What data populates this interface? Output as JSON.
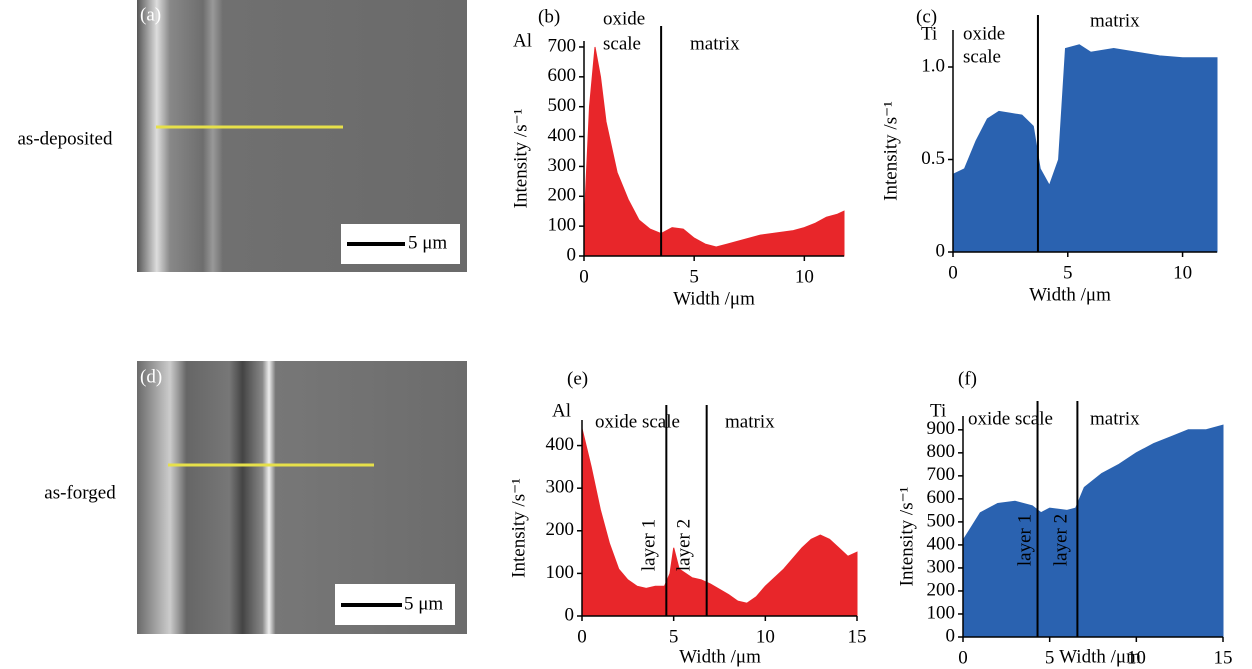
{
  "panels": [
    {
      "label": "(a)",
      "row_label": "as-deposited",
      "scale_bar": "5 μm"
    },
    {
      "label": "(d)",
      "row_label": "as-forged",
      "scale_bar": "5 μm"
    }
  ],
  "chart_data": [
    {
      "type": "area",
      "panel": "(b)",
      "element": "Al",
      "xlabel": "Width /μm",
      "ylabel": "Intensity /s⁻¹",
      "color": "#e8262a",
      "annotations": [
        "oxide",
        "scale",
        "matrix"
      ],
      "vlines": [
        3.5
      ],
      "x": [
        0,
        0.25,
        0.5,
        0.75,
        1,
        1.5,
        2,
        2.5,
        3,
        3.5,
        4,
        4.5,
        5,
        5.5,
        6,
        6.5,
        7,
        7.5,
        8,
        8.5,
        9,
        9.5,
        10,
        10.5,
        11,
        11.5,
        11.8
      ],
      "values": [
        100,
        500,
        700,
        600,
        450,
        280,
        190,
        120,
        90,
        75,
        95,
        90,
        60,
        40,
        30,
        40,
        50,
        60,
        70,
        75,
        80,
        85,
        95,
        110,
        130,
        140,
        150
      ],
      "xlim": [
        0,
        11.8
      ],
      "ylim": [
        0,
        720
      ],
      "xticks": [
        0,
        5,
        10
      ],
      "yticks": [
        0,
        100,
        200,
        300,
        400,
        500,
        600,
        700
      ]
    },
    {
      "type": "area",
      "panel": "(c)",
      "element": "Ti",
      "xlabel": "Width /μm",
      "ylabel": "Intensity /s⁻¹",
      "color": "#2a62b0",
      "annotations": [
        "oxide",
        "scale",
        "matrix"
      ],
      "vlines": [
        3.7
      ],
      "x": [
        0,
        0.5,
        1,
        1.5,
        2,
        2.5,
        3,
        3.5,
        3.8,
        4.2,
        4.6,
        4.9,
        5.5,
        6,
        7,
        8,
        9,
        10,
        11,
        11.5
      ],
      "values": [
        0.42,
        0.45,
        0.6,
        0.72,
        0.76,
        0.75,
        0.74,
        0.68,
        0.45,
        0.36,
        0.5,
        1.1,
        1.12,
        1.08,
        1.1,
        1.08,
        1.06,
        1.05,
        1.05,
        1.05
      ],
      "xlim": [
        0,
        11.5
      ],
      "ylim": [
        0,
        1.2
      ],
      "xticks": [
        0,
        5,
        10
      ],
      "yticks": [
        0,
        0.5,
        {
          "value": 1,
          "label": "1.0"
        }
      ]
    },
    {
      "type": "area",
      "panel": "(e)",
      "element": "Al",
      "xlabel": "Width /μm",
      "ylabel": "Intensity /s⁻¹",
      "color": "#e8262a",
      "annotations": [
        "oxide scale",
        "matrix",
        "layer 1",
        "layer 2"
      ],
      "vlines": [
        4.6,
        6.8
      ],
      "x": [
        0,
        0.5,
        1,
        1.5,
        2,
        2.5,
        3,
        3.5,
        4,
        4.5,
        4.8,
        5,
        5.3,
        6,
        6.5,
        7,
        8,
        8.5,
        9,
        9.5,
        10,
        11,
        12,
        12.5,
        13,
        13.5,
        14,
        14.5,
        15
      ],
      "values": [
        440,
        350,
        250,
        170,
        110,
        85,
        70,
        65,
        70,
        70,
        100,
        160,
        110,
        90,
        85,
        75,
        50,
        35,
        30,
        45,
        70,
        110,
        160,
        180,
        190,
        180,
        160,
        140,
        150
      ],
      "xlim": [
        0,
        15
      ],
      "ylim": [
        0,
        460
      ],
      "xticks": [
        0,
        5,
        10,
        15
      ],
      "yticks": [
        0,
        100,
        200,
        300,
        400
      ]
    },
    {
      "type": "area",
      "panel": "(f)",
      "element": "Ti",
      "xlabel": "Width /μm",
      "ylabel": "Intensity /s⁻¹",
      "color": "#2a62b0",
      "annotations": [
        "oxide scale",
        "matrix",
        "layer 1",
        "layer 2"
      ],
      "vlines": [
        4.3,
        6.6
      ],
      "x": [
        0,
        0.5,
        1,
        2,
        3,
        4,
        4.5,
        5,
        6,
        6.5,
        7,
        8,
        9,
        10,
        11,
        12,
        13,
        14,
        15
      ],
      "values": [
        420,
        480,
        540,
        580,
        590,
        570,
        540,
        560,
        550,
        560,
        650,
        710,
        750,
        800,
        840,
        870,
        900,
        900,
        920
      ],
      "xlim": [
        0,
        15
      ],
      "ylim": [
        0,
        960
      ],
      "xticks": [
        0,
        5,
        10,
        15
      ],
      "yticks": [
        0,
        100,
        200,
        300,
        400,
        500,
        600,
        700,
        800,
        900
      ]
    }
  ]
}
